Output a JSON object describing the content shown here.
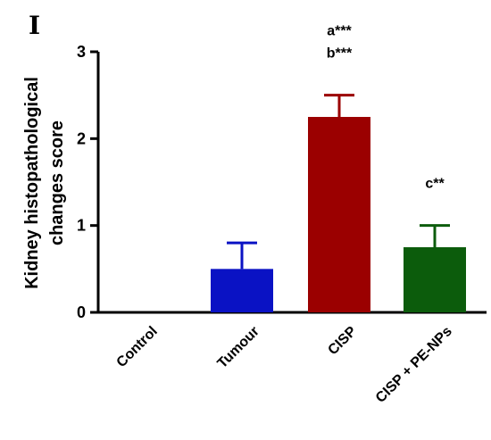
{
  "panel_label": "I",
  "chart_data": {
    "type": "bar",
    "ylabel_lines": [
      "Kidney histopathological",
      "changes score"
    ],
    "xlabel": "",
    "ylim": [
      0,
      3
    ],
    "yticks": [
      0,
      1,
      2,
      3
    ],
    "grid": false,
    "legend": "none",
    "categories": [
      "Control",
      "Tumour",
      "CISP",
      "CISP + PE-NPs"
    ],
    "values": [
      0,
      0.5,
      2.25,
      0.75
    ],
    "errors": [
      0,
      0.3,
      0.25,
      0.25
    ],
    "colors": [
      "#000000",
      "#0a12c4",
      "#9b0000",
      "#0c5c0c"
    ],
    "annotations": [
      {
        "category": "CISP",
        "lines": [
          "a***",
          "b***"
        ]
      },
      {
        "category": "CISP + PE-NPs",
        "lines": [
          "c**"
        ]
      }
    ]
  }
}
